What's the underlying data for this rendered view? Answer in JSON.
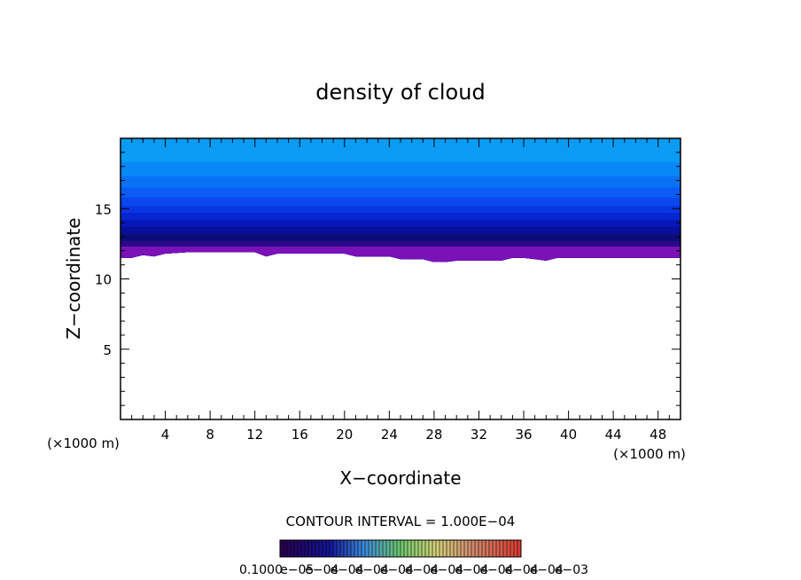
{
  "chart_data": {
    "type": "heatmap",
    "title": "density of cloud",
    "xlabel": "X−coordinate",
    "ylabel": "Z−coordinate",
    "x_unit_label": "(×1000 m)",
    "y_unit_label": "(×1000 m)",
    "xlim": [
      0,
      50
    ],
    "ylim": [
      0,
      20
    ],
    "x_ticks": [
      4,
      8,
      12,
      16,
      20,
      24,
      28,
      32,
      36,
      40,
      44,
      48
    ],
    "y_ticks": [
      5,
      10,
      15
    ],
    "contour_interval_label": "CONTOUR INTERVAL = 1.000E−04",
    "colorbar_labels": [
      "0.1000",
      "e−05",
      "e−04",
      "e−04",
      "e−04",
      "e−04",
      "e−04",
      "e−04",
      "e−04",
      "e−04",
      "e−04",
      "e−04",
      "e−03"
    ],
    "cloud_base_profile": {
      "x": [
        0,
        1,
        2,
        3,
        4,
        6,
        8,
        10,
        12,
        13,
        14,
        16,
        18,
        20,
        21,
        22,
        24,
        25,
        26,
        27,
        28,
        29,
        30,
        31,
        32,
        33,
        34,
        35,
        36,
        37,
        38,
        39,
        40,
        42,
        44,
        46,
        48,
        50
      ],
      "z": [
        11.5,
        11.5,
        11.7,
        11.6,
        11.8,
        11.9,
        11.9,
        11.9,
        11.9,
        11.6,
        11.8,
        11.8,
        11.8,
        11.8,
        11.6,
        11.6,
        11.6,
        11.4,
        11.4,
        11.4,
        11.2,
        11.2,
        11.3,
        11.3,
        11.3,
        11.3,
        11.3,
        11.5,
        11.5,
        11.4,
        11.3,
        11.5,
        11.5,
        11.5,
        11.5,
        11.5,
        11.5,
        11.5
      ]
    },
    "bands": [
      {
        "z_top": 12.3,
        "color": "#7a12b8"
      },
      {
        "z_top": 12.7,
        "color": "#2a0a8a"
      },
      {
        "z_top": 13.2,
        "color": "#0c0c78"
      },
      {
        "z_top": 13.7,
        "color": "#08109a"
      },
      {
        "z_top": 14.2,
        "color": "#0818b8"
      },
      {
        "z_top": 14.7,
        "color": "#0626d2"
      },
      {
        "z_top": 15.2,
        "color": "#0836e4"
      },
      {
        "z_top": 15.8,
        "color": "#0a48ee"
      },
      {
        "z_top": 16.5,
        "color": "#0a5cf4"
      },
      {
        "z_top": 17.3,
        "color": "#0872f6"
      },
      {
        "z_top": 18.3,
        "color": "#0888f6"
      },
      {
        "z_top": 20.0,
        "color": "#0a9cf4"
      }
    ],
    "grid": false
  }
}
